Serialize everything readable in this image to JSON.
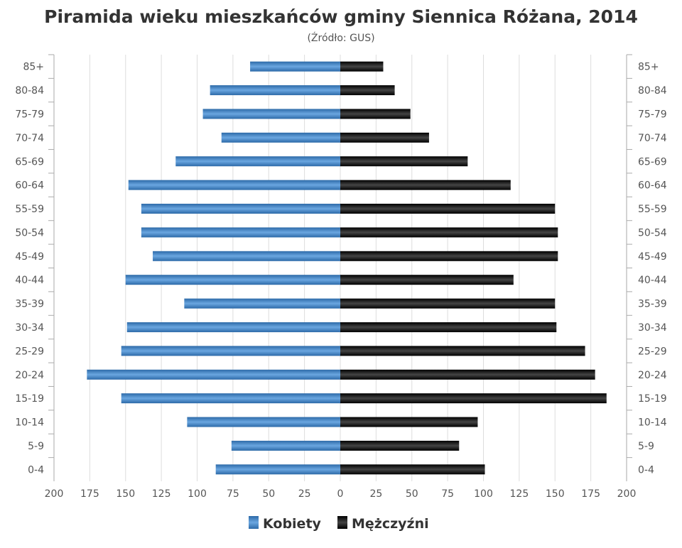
{
  "chart_data": {
    "type": "bar",
    "orientation": "horizontal-pyramid",
    "title": "Piramida wieku mieszkańców gminy Siennica Różana, 2014",
    "subtitle": "(Źródło: GUS)",
    "categories": [
      "85+",
      "80-84",
      "75-79",
      "70-74",
      "65-69",
      "60-64",
      "55-59",
      "50-54",
      "45-49",
      "40-44",
      "35-39",
      "30-34",
      "25-29",
      "20-24",
      "15-19",
      "10-14",
      "5-9",
      "0-4"
    ],
    "series": [
      {
        "name": "Kobiety",
        "side": "left",
        "color": "#3a7cc0",
        "values": [
          63,
          91,
          96,
          83,
          115,
          148,
          139,
          139,
          131,
          150,
          109,
          149,
          153,
          177,
          153,
          107,
          76,
          87
        ]
      },
      {
        "name": "Mężczyźni",
        "side": "right",
        "color": "#111111",
        "values": [
          30,
          38,
          49,
          62,
          89,
          119,
          150,
          152,
          152,
          121,
          150,
          151,
          171,
          178,
          186,
          96,
          83,
          101
        ]
      }
    ],
    "x_ticks": [
      "200",
      "175",
      "150",
      "125",
      "100",
      "75",
      "50",
      "25",
      "0",
      "25",
      "50",
      "75",
      "100",
      "125",
      "150",
      "175",
      "200"
    ],
    "xlim": [
      -200,
      200
    ],
    "grid": true,
    "legend": "bottom-center"
  }
}
